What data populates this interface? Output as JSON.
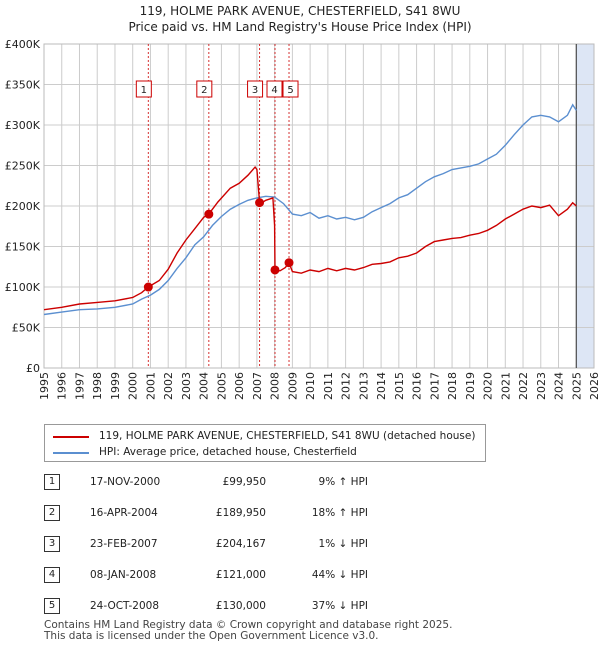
{
  "title_line1": "119, HOLME PARK AVENUE, CHESTERFIELD, S41 8WU",
  "title_line2": "Price paid vs. HM Land Registry's House Price Index (HPI)",
  "colors": {
    "property": "#cc0000",
    "hpi": "#5b8fd0",
    "shade": "#dde6f5",
    "grid": "#cccccc"
  },
  "legend": {
    "property_label": "119, HOLME PARK AVENUE, CHESTERFIELD, S41 8WU (detached house)",
    "hpi_label": "HPI: Average price, detached house, Chesterfield"
  },
  "transactions": [
    {
      "num": "1",
      "date": "17-NOV-2000",
      "price": "£99,950",
      "hpi": "9% ↑ HPI"
    },
    {
      "num": "2",
      "date": "16-APR-2004",
      "price": "£189,950",
      "hpi": "18% ↑ HPI"
    },
    {
      "num": "3",
      "date": "23-FEB-2007",
      "price": "£204,167",
      "hpi": "1% ↓ HPI"
    },
    {
      "num": "4",
      "date": "08-JAN-2008",
      "price": "£121,000",
      "hpi": "44% ↓ HPI"
    },
    {
      "num": "5",
      "date": "24-OCT-2008",
      "price": "£130,000",
      "hpi": "37% ↓ HPI"
    }
  ],
  "footer_line1": "Contains HM Land Registry data © Crown copyright and database right 2025.",
  "footer_line2": "This data is licensed under the Open Government Licence v3.0.",
  "chart_data": {
    "type": "line",
    "title": "119, HOLME PARK AVENUE, CHESTERFIELD, S41 8WU",
    "subtitle": "Price paid vs. HM Land Registry's House Price Index (HPI)",
    "xlabel": "",
    "ylabel": "",
    "xlim": [
      1995,
      2026
    ],
    "ylim": [
      0,
      400000
    ],
    "x_ticks": [
      1995,
      1996,
      1997,
      1998,
      1999,
      2000,
      2001,
      2002,
      2003,
      2004,
      2005,
      2006,
      2007,
      2008,
      2009,
      2010,
      2011,
      2012,
      2013,
      2014,
      2015,
      2016,
      2017,
      2018,
      2019,
      2020,
      2021,
      2022,
      2023,
      2024,
      2025,
      2026
    ],
    "y_ticks": [
      {
        "value": 0,
        "label": "£0"
      },
      {
        "value": 50000,
        "label": "£50K"
      },
      {
        "value": 100000,
        "label": "£100K"
      },
      {
        "value": 150000,
        "label": "£150K"
      },
      {
        "value": 200000,
        "label": "£200K"
      },
      {
        "value": 250000,
        "label": "£250K"
      },
      {
        "value": 300000,
        "label": "£300K"
      },
      {
        "value": 350000,
        "label": "£350K"
      },
      {
        "value": 400000,
        "label": "£400K"
      }
    ],
    "grid": true,
    "forecast_shade_from": 2025.0,
    "series": [
      {
        "name": "119, HOLME PARK AVENUE, CHESTERFIELD, S41 8WU (detached house)",
        "x": [
          1995.0,
          1996.0,
          1997.0,
          1998.0,
          1999.0,
          2000.0,
          2000.5,
          2000.88,
          2001.5,
          2002.0,
          2002.5,
          2003.0,
          2003.5,
          2004.0,
          2004.29,
          2004.8,
          2005.5,
          2006.0,
          2006.5,
          2006.9,
          2007.0,
          2007.15,
          2007.2,
          2007.5,
          2007.9,
          2008.0,
          2008.02,
          2008.3,
          2008.6,
          2008.81,
          2009.0,
          2009.5,
          2010.0,
          2010.5,
          2011.0,
          2011.5,
          2012.0,
          2012.5,
          2013.0,
          2013.5,
          2014.0,
          2014.5,
          2015.0,
          2015.5,
          2016.0,
          2016.5,
          2017.0,
          2017.5,
          2018.0,
          2018.5,
          2019.0,
          2019.5,
          2020.0,
          2020.5,
          2021.0,
          2021.5,
          2022.0,
          2022.5,
          2023.0,
          2023.5,
          2024.0,
          2024.5,
          2024.8,
          2025.0
        ],
        "values": [
          72000,
          75000,
          79000,
          81000,
          83000,
          87000,
          93000,
          99950,
          108000,
          122000,
          142000,
          158000,
          172000,
          186000,
          189950,
          205000,
          222000,
          228000,
          238000,
          248000,
          245000,
          204167,
          203000,
          207000,
          210000,
          176000,
          121000,
          120000,
          124000,
          130000,
          119000,
          117000,
          121000,
          119000,
          123000,
          120000,
          123000,
          121000,
          124000,
          128000,
          129000,
          131000,
          136000,
          138000,
          142000,
          150000,
          156000,
          158000,
          160000,
          161000,
          164000,
          166000,
          170000,
          176000,
          184000,
          190000,
          196000,
          200000,
          198000,
          201000,
          188000,
          196000,
          204000,
          200000
        ]
      },
      {
        "name": "HPI: Average price, detached house, Chesterfield",
        "x": [
          1995.0,
          1996.0,
          1997.0,
          1998.0,
          1999.0,
          2000.0,
          2000.5,
          2001.0,
          2001.5,
          2002.0,
          2002.5,
          2003.0,
          2003.5,
          2004.0,
          2004.5,
          2005.0,
          2005.5,
          2006.0,
          2006.5,
          2007.0,
          2007.5,
          2008.0,
          2008.5,
          2009.0,
          2009.5,
          2010.0,
          2010.5,
          2011.0,
          2011.5,
          2012.0,
          2012.5,
          2013.0,
          2013.5,
          2014.0,
          2014.5,
          2015.0,
          2015.5,
          2016.0,
          2016.5,
          2017.0,
          2017.5,
          2018.0,
          2018.5,
          2019.0,
          2019.5,
          2020.0,
          2020.5,
          2021.0,
          2021.5,
          2022.0,
          2022.5,
          2023.0,
          2023.5,
          2024.0,
          2024.5,
          2024.8,
          2025.0
        ],
        "values": [
          66000,
          69000,
          72000,
          73000,
          75000,
          79000,
          85000,
          90000,
          97000,
          108000,
          123000,
          136000,
          152000,
          162000,
          176000,
          187000,
          196000,
          202000,
          207000,
          210000,
          212000,
          211000,
          203000,
          190000,
          188000,
          192000,
          185000,
          188000,
          184000,
          186000,
          183000,
          186000,
          193000,
          198000,
          203000,
          210000,
          214000,
          222000,
          230000,
          236000,
          240000,
          245000,
          247000,
          249000,
          252000,
          258000,
          264000,
          275000,
          288000,
          300000,
          310000,
          312000,
          310000,
          304000,
          312000,
          325000,
          318000
        ]
      }
    ],
    "markers": [
      {
        "label": "1",
        "x": 2000.88,
        "y": 99950
      },
      {
        "label": "2",
        "x": 2004.29,
        "y": 189950
      },
      {
        "label": "3",
        "x": 2007.15,
        "y": 204167
      },
      {
        "label": "4",
        "x": 2008.02,
        "y": 121000
      },
      {
        "label": "5",
        "x": 2008.81,
        "y": 130000
      }
    ]
  }
}
